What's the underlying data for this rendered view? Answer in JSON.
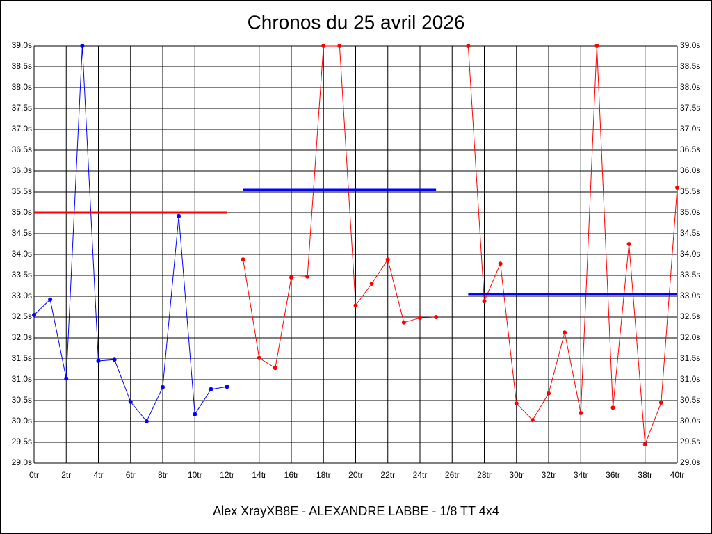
{
  "chart_data": {
    "type": "line",
    "title": "Chronos du 25 avril 2026",
    "footer": "Alex XrayXB8E - ALEXANDRE LABBE - 1/8 TT 4x4",
    "x": [
      0,
      1,
      2,
      3,
      4,
      5,
      6,
      7,
      8,
      9,
      10,
      11,
      12,
      13,
      14,
      15,
      16,
      17,
      18,
      19,
      20,
      21,
      22,
      23,
      24,
      25,
      26,
      27,
      28,
      29,
      30,
      31,
      32,
      33,
      34,
      35,
      36,
      37,
      38,
      39,
      40
    ],
    "series": [
      {
        "color": "#0000ff",
        "values": [
          32.55,
          32.92,
          31.03,
          39.0,
          31.45,
          31.48,
          30.47,
          30.0,
          30.82,
          34.92,
          30.17,
          30.77,
          30.83,
          null,
          null,
          null,
          null,
          null,
          null,
          null,
          null,
          null,
          null,
          null,
          null,
          null,
          null,
          null,
          null,
          null,
          null,
          null,
          null,
          null,
          null,
          null,
          null,
          null,
          null,
          null,
          null
        ]
      },
      {
        "color": "#ff0000",
        "values": [
          null,
          null,
          null,
          null,
          null,
          null,
          null,
          null,
          null,
          null,
          null,
          null,
          null,
          33.88,
          31.52,
          31.28,
          33.45,
          33.47,
          39.0,
          39.0,
          32.78,
          33.3,
          33.88,
          32.37,
          32.48,
          32.5,
          null,
          39.0,
          32.88,
          33.78,
          30.43,
          30.03,
          30.67,
          32.13,
          30.2,
          39.0,
          30.33,
          34.25,
          29.45,
          30.45,
          35.6
        ]
      }
    ],
    "reference_lines": [
      {
        "x": [
          0,
          12
        ],
        "value": 35.0,
        "color": "#ff0000"
      },
      {
        "x": [
          13,
          25
        ],
        "value": 35.55,
        "color": "#0000ff"
      },
      {
        "x": [
          27,
          40
        ],
        "value": 33.05,
        "color": "#0000ff"
      }
    ],
    "xlim": [
      0,
      40
    ],
    "xticks": [
      {
        "value": 0,
        "label": "0tr"
      },
      {
        "value": 2,
        "label": "2tr"
      },
      {
        "value": 4,
        "label": "4tr"
      },
      {
        "value": 6,
        "label": "6tr"
      },
      {
        "value": 8,
        "label": "8tr"
      },
      {
        "value": 10,
        "label": "10tr"
      },
      {
        "value": 12,
        "label": "12tr"
      },
      {
        "value": 14,
        "label": "14tr"
      },
      {
        "value": 16,
        "label": "16tr"
      },
      {
        "value": 18,
        "label": "18tr"
      },
      {
        "value": 20,
        "label": "20tr"
      },
      {
        "value": 22,
        "label": "22tr"
      },
      {
        "value": 24,
        "label": "24tr"
      },
      {
        "value": 26,
        "label": "26tr"
      },
      {
        "value": 28,
        "label": "28tr"
      },
      {
        "value": 30,
        "label": "30tr"
      },
      {
        "value": 32,
        "label": "32tr"
      },
      {
        "value": 34,
        "label": "34tr"
      },
      {
        "value": 36,
        "label": "36tr"
      },
      {
        "value": 38,
        "label": "38tr"
      },
      {
        "value": 40,
        "label": "40tr"
      }
    ],
    "ylim": [
      29.0,
      39.0
    ],
    "yticks": [
      {
        "value": 29.0,
        "label": "29.0s"
      },
      {
        "value": 29.5,
        "label": "29.5s"
      },
      {
        "value": 30.0,
        "label": "30.0s"
      },
      {
        "value": 30.5,
        "label": "30.5s"
      },
      {
        "value": 31.0,
        "label": "31.0s"
      },
      {
        "value": 31.5,
        "label": "31.5s"
      },
      {
        "value": 32.0,
        "label": "32.0s"
      },
      {
        "value": 32.5,
        "label": "32.5s"
      },
      {
        "value": 33.0,
        "label": "33.0s"
      },
      {
        "value": 33.5,
        "label": "33.5s"
      },
      {
        "value": 34.0,
        "label": "34.0s"
      },
      {
        "value": 34.5,
        "label": "34.5s"
      },
      {
        "value": 35.0,
        "label": "35.0s"
      },
      {
        "value": 35.5,
        "label": "35.5s"
      },
      {
        "value": 36.0,
        "label": "36.0s"
      },
      {
        "value": 36.5,
        "label": "36.5s"
      },
      {
        "value": 37.0,
        "label": "37.0s"
      },
      {
        "value": 37.5,
        "label": "37.5s"
      },
      {
        "value": 38.0,
        "label": "38.0s"
      },
      {
        "value": 38.5,
        "label": "38.5s"
      },
      {
        "value": 39.0,
        "label": "39.0s"
      }
    ],
    "grid": true
  }
}
